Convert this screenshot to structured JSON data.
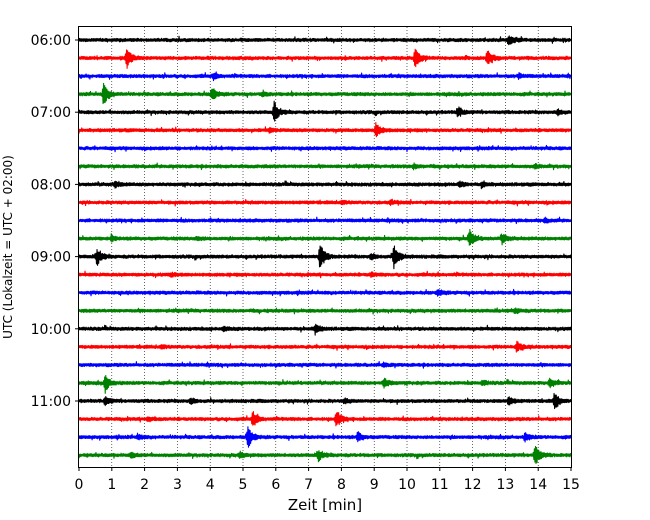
{
  "chart_data": {
    "type": "line",
    "xlabel": "Zeit  [min]",
    "ylabel": "UTC (Lokalzeit = UTC + 02:00)",
    "xlim": [
      0,
      15
    ],
    "x_ticks": [
      "0",
      "1",
      "2",
      "3",
      "4",
      "5",
      "6",
      "7",
      "8",
      "9",
      "10",
      "11",
      "12",
      "13",
      "14",
      "15"
    ],
    "y_tick_labels": [
      "06:00",
      "07:00",
      "08:00",
      "09:00",
      "10:00",
      "11:00"
    ],
    "y_tick_rows": [
      0,
      4,
      8,
      12,
      16,
      20
    ],
    "grid": "vertical dotted at each minute",
    "row_minutes": 15,
    "row_colors": [
      "#000000",
      "#ff0000",
      "#0000ff",
      "#008000"
    ],
    "traces": [
      {
        "start": "06:00",
        "events": [
          [
            13.1,
            1.0
          ]
        ]
      },
      {
        "start": "06:15",
        "events": [
          [
            1.45,
            2.3
          ],
          [
            10.25,
            2.1
          ],
          [
            12.45,
            1.7
          ]
        ]
      },
      {
        "start": "06:30",
        "events": [
          [
            4.1,
            0.6
          ],
          [
            13.4,
            0.5
          ]
        ]
      },
      {
        "start": "06:45",
        "events": [
          [
            0.75,
            2.5
          ],
          [
            4.05,
            1.5
          ],
          [
            5.6,
            0.4
          ]
        ]
      },
      {
        "start": "07:00",
        "events": [
          [
            5.95,
            2.2
          ],
          [
            11.55,
            1.1
          ],
          [
            14.6,
            0.6
          ]
        ]
      },
      {
        "start": "07:15",
        "events": [
          [
            9.05,
            1.6
          ],
          [
            5.8,
            0.4
          ]
        ]
      },
      {
        "start": "07:30",
        "events": []
      },
      {
        "start": "07:45",
        "events": [
          [
            10.2,
            0.5
          ],
          [
            13.9,
            0.4
          ]
        ]
      },
      {
        "start": "08:00",
        "events": [
          [
            1.1,
            0.6
          ],
          [
            11.6,
            0.6
          ],
          [
            12.3,
            0.5
          ]
        ]
      },
      {
        "start": "08:15",
        "events": [
          [
            8.0,
            0.4
          ],
          [
            9.5,
            0.4
          ]
        ]
      },
      {
        "start": "08:30",
        "events": [
          [
            14.2,
            0.4
          ]
        ]
      },
      {
        "start": "08:45",
        "events": [
          [
            11.9,
            2.0
          ],
          [
            12.9,
            1.0
          ],
          [
            1.0,
            0.5
          ],
          [
            3.6,
            0.4
          ]
        ]
      },
      {
        "start": "09:00",
        "events": [
          [
            0.55,
            1.9
          ],
          [
            7.35,
            2.8
          ],
          [
            9.6,
            2.6
          ],
          [
            8.9,
            0.6
          ]
        ]
      },
      {
        "start": "09:15",
        "events": [
          [
            2.8,
            0.4
          ],
          [
            8.9,
            0.4
          ]
        ]
      },
      {
        "start": "09:30",
        "events": [
          [
            10.95,
            0.7
          ]
        ]
      },
      {
        "start": "09:45",
        "events": [
          [
            13.3,
            0.5
          ]
        ]
      },
      {
        "start": "10:00",
        "events": [
          [
            7.2,
            1.0
          ],
          [
            4.4,
            0.4
          ]
        ]
      },
      {
        "start": "10:15",
        "events": [
          [
            13.35,
            1.1
          ],
          [
            2.5,
            0.4
          ]
        ]
      },
      {
        "start": "10:30",
        "events": [
          [
            9.3,
            0.4
          ]
        ]
      },
      {
        "start": "10:45",
        "events": [
          [
            0.8,
            1.9
          ],
          [
            9.3,
            1.0
          ],
          [
            14.35,
            1.0
          ],
          [
            12.3,
            0.5
          ]
        ]
      },
      {
        "start": "11:00",
        "events": [
          [
            14.5,
            1.9
          ],
          [
            0.8,
            0.9
          ],
          [
            13.1,
            0.9
          ],
          [
            3.4,
            0.6
          ],
          [
            8.1,
            0.5
          ]
        ]
      },
      {
        "start": "11:15",
        "events": [
          [
            5.3,
            1.6
          ],
          [
            7.85,
            1.8
          ],
          [
            2.1,
            0.5
          ]
        ]
      },
      {
        "start": "11:30",
        "events": [
          [
            5.15,
            2.4
          ],
          [
            8.5,
            1.0
          ],
          [
            13.6,
            0.8
          ],
          [
            1.8,
            0.5
          ]
        ]
      },
      {
        "start": "11:45",
        "events": [
          [
            13.9,
            2.3
          ],
          [
            7.3,
            1.2
          ],
          [
            4.9,
            0.6
          ],
          [
            1.6,
            0.5
          ]
        ]
      }
    ]
  }
}
